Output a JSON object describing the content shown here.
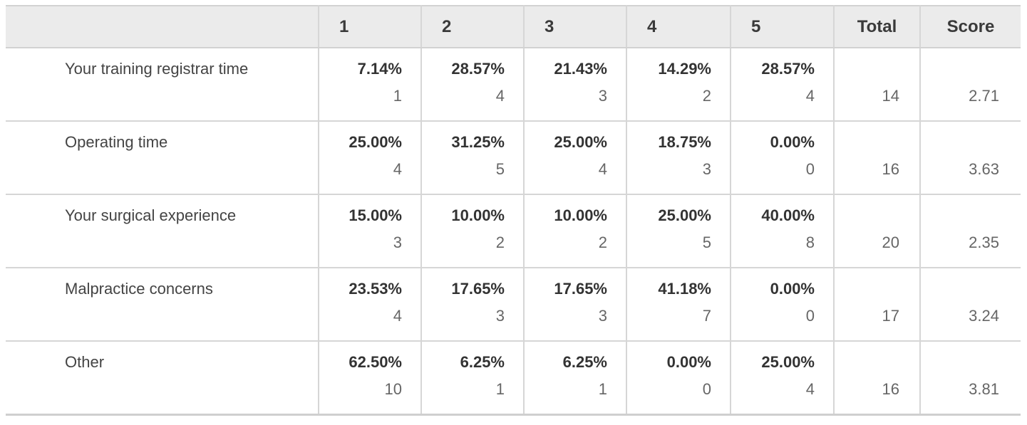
{
  "chart_data": {
    "type": "table",
    "columns": [
      "",
      "1",
      "2",
      "3",
      "4",
      "5",
      "Total",
      "Score"
    ],
    "rows": [
      {
        "label": "Your training registrar time",
        "cells": [
          {
            "pct": "7.14%",
            "count": "1"
          },
          {
            "pct": "28.57%",
            "count": "4"
          },
          {
            "pct": "21.43%",
            "count": "3"
          },
          {
            "pct": "14.29%",
            "count": "2"
          },
          {
            "pct": "28.57%",
            "count": "4"
          }
        ],
        "total": "14",
        "score": "2.71"
      },
      {
        "label": "Operating time",
        "cells": [
          {
            "pct": "25.00%",
            "count": "4"
          },
          {
            "pct": "31.25%",
            "count": "5"
          },
          {
            "pct": "25.00%",
            "count": "4"
          },
          {
            "pct": "18.75%",
            "count": "3"
          },
          {
            "pct": "0.00%",
            "count": "0"
          }
        ],
        "total": "16",
        "score": "3.63"
      },
      {
        "label": "Your surgical experience",
        "cells": [
          {
            "pct": "15.00%",
            "count": "3"
          },
          {
            "pct": "10.00%",
            "count": "2"
          },
          {
            "pct": "10.00%",
            "count": "2"
          },
          {
            "pct": "25.00%",
            "count": "5"
          },
          {
            "pct": "40.00%",
            "count": "8"
          }
        ],
        "total": "20",
        "score": "2.35"
      },
      {
        "label": "Malpractice concerns",
        "cells": [
          {
            "pct": "23.53%",
            "count": "4"
          },
          {
            "pct": "17.65%",
            "count": "3"
          },
          {
            "pct": "17.65%",
            "count": "3"
          },
          {
            "pct": "41.18%",
            "count": "7"
          },
          {
            "pct": "0.00%",
            "count": "0"
          }
        ],
        "total": "17",
        "score": "3.24"
      },
      {
        "label": "Other",
        "cells": [
          {
            "pct": "62.50%",
            "count": "10"
          },
          {
            "pct": "6.25%",
            "count": "1"
          },
          {
            "pct": "6.25%",
            "count": "1"
          },
          {
            "pct": "0.00%",
            "count": "0"
          },
          {
            "pct": "25.00%",
            "count": "4"
          }
        ],
        "total": "16",
        "score": "3.81"
      }
    ]
  },
  "colors": {
    "header_background": "#ebebeb",
    "grid_lines": "#d6d6d6",
    "text": "#333333",
    "muted_text": "#666666"
  }
}
